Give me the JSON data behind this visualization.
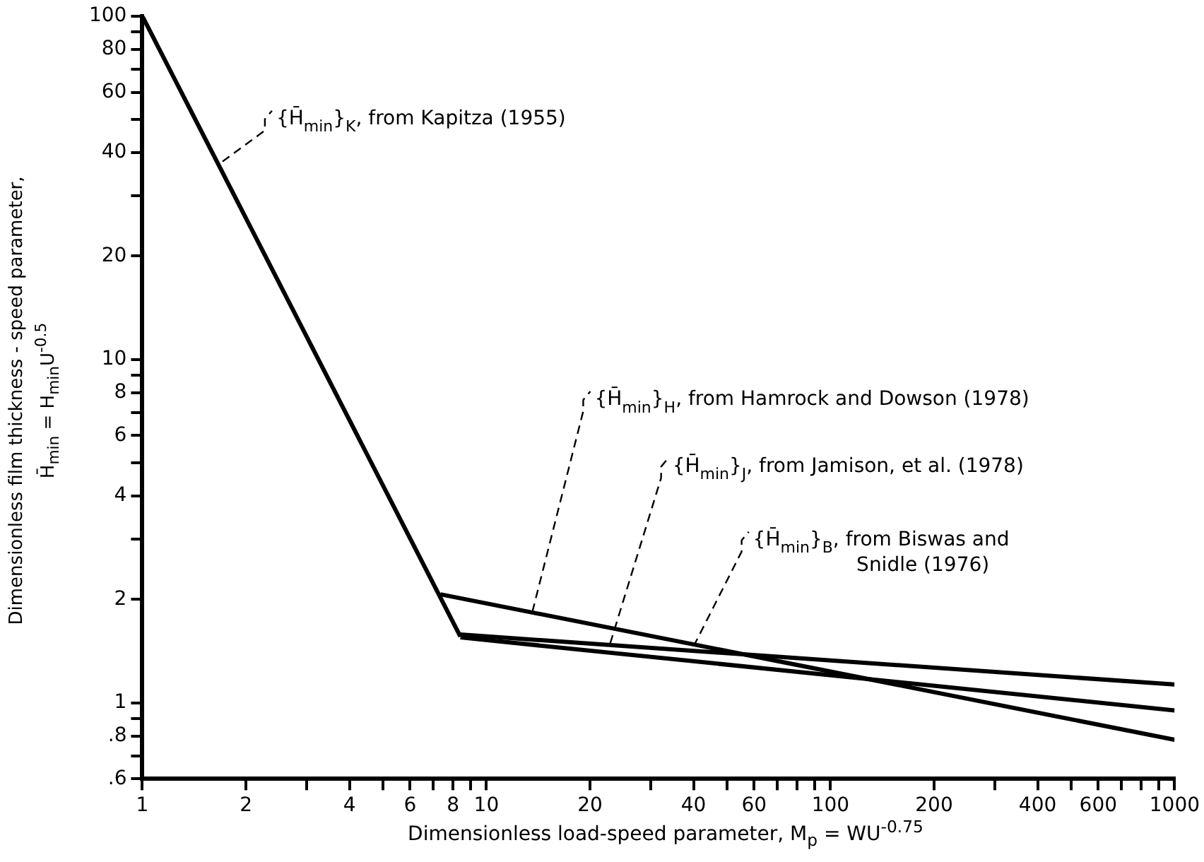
{
  "chart_data": {
    "type": "line",
    "xlabel": "Dimensionless load-speed parameter, M$_{p}$ = WU$^{-0.75}$",
    "ylabel": "Dimensionless film thickness - speed parameter,\nH̄$_{min}$ = H$_{min}$U$^{-0.5}$",
    "log": "xy",
    "grid": false,
    "legend": false,
    "marker": "none",
    "line_style": "solid",
    "xlim": [
      1,
      1000
    ],
    "ylim": [
      0.6,
      100
    ],
    "xticks": [
      1,
      2,
      {
        "value": 3,
        "label": null
      },
      4,
      {
        "value": 5,
        "label": null
      },
      6,
      {
        "value": 7,
        "label": null
      },
      8,
      {
        "value": 9,
        "label": null
      },
      10,
      20,
      {
        "value": 30,
        "label": null
      },
      40,
      {
        "value": 50,
        "label": null
      },
      60,
      {
        "value": 70,
        "label": null
      },
      {
        "value": 80,
        "label": null
      },
      {
        "value": 90,
        "label": null
      },
      100,
      200,
      {
        "value": 300,
        "label": null
      },
      400,
      {
        "value": 500,
        "label": null
      },
      600,
      {
        "value": 700,
        "label": null
      },
      {
        "value": 800,
        "label": null
      },
      {
        "value": 900,
        "label": null
      },
      1000
    ],
    "yticks": [
      {
        "value": 0.6,
        "label": ".6"
      },
      {
        "value": 0.7,
        "label": null
      },
      {
        "value": 0.8,
        "label": ".8"
      },
      {
        "value": 0.9,
        "label": null
      },
      1,
      2,
      {
        "value": 3,
        "label": null
      },
      4,
      {
        "value": 5,
        "label": null
      },
      6,
      {
        "value": 7,
        "label": null
      },
      8,
      {
        "value": 9,
        "label": null
      },
      10,
      20,
      {
        "value": 30,
        "label": null
      },
      40,
      {
        "value": 50,
        "label": null
      },
      60,
      {
        "value": 70,
        "label": null
      },
      80,
      {
        "value": 90,
        "label": null
      },
      100
    ],
    "series": [
      {
        "color": "#000000",
        "x": [
          1,
          8.4
        ],
        "values": [
          100,
          1.56
        ]
      },
      {
        "color": "#000000",
        "x": [
          7.35,
          1000
        ],
        "values": [
          2.07,
          0.78
        ]
      },
      {
        "color": "#000000",
        "x": [
          8.4,
          1000
        ],
        "values": [
          1.58,
          1.13
        ]
      },
      {
        "color": "#000000",
        "x": [
          8.4,
          1000
        ],
        "values": [
          1.55,
          0.95
        ]
      }
    ],
    "annotations": [
      {
        "text": "{H̄$_{min}$}$_{K}$, from Kapitza (1955)",
        "x": 1.71,
        "y": 37.7
      },
      {
        "text": "{H̄$_{min}$}$_{H}$, from Hamrock and Dowson (1978)",
        "x": 13.6,
        "y": 1.84
      },
      {
        "text": "{H̄$_{min}$}$_{J}$, from Jamison, et al. (1978)",
        "x": 22.9,
        "y": 1.49
      },
      {
        "text": "{H̄$_{min}$}$_{B}$, from Biswas and\nSnidle (1976)",
        "x": 40,
        "y": 1.46
      }
    ]
  }
}
